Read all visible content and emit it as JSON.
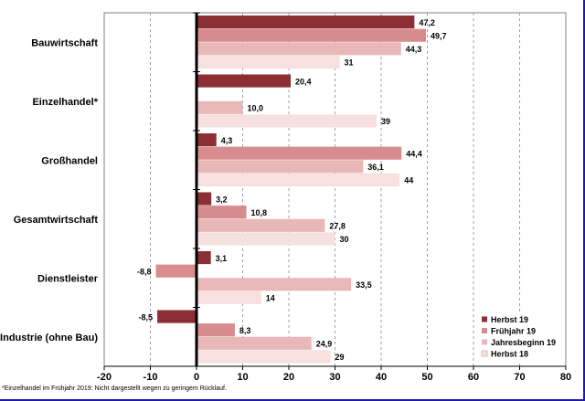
{
  "chart_data": {
    "type": "bar",
    "orientation": "horizontal",
    "categories": [
      "Bauwirtschaft",
      "Einzelhandel*",
      "Großhandel",
      "Gesamtwirtschaft",
      "Dienstleister",
      "Industrie (ohne Bau)"
    ],
    "series": [
      {
        "name": "Herbst 19",
        "color": "#8b2f35",
        "values": [
          47.2,
          20.4,
          4.3,
          3.2,
          3.1,
          -8.5
        ],
        "labels": [
          "47,2",
          "20,4",
          "4,3",
          "3,2",
          "3,1",
          "-8,5"
        ]
      },
      {
        "name": "Frühjahr 19",
        "color": "#d88c8e",
        "values": [
          49.7,
          null,
          44.4,
          10.8,
          -8.8,
          8.3
        ],
        "labels": [
          "49,7",
          "",
          "44,4",
          "10,8",
          "-8,8",
          "8,3"
        ]
      },
      {
        "name": "Jahresbeginn 19",
        "color": "#e8b8b8",
        "values": [
          44.3,
          10.0,
          36.1,
          27.8,
          33.5,
          24.9
        ],
        "labels": [
          "44,3",
          "10,0",
          "36,1",
          "27,8",
          "33,5",
          "24,9"
        ]
      },
      {
        "name": "Herbst 18",
        "color": "#f6e0e0",
        "values": [
          31,
          39,
          44,
          30,
          14,
          29
        ],
        "labels": [
          "31",
          "39",
          "44",
          "30",
          "14",
          "29"
        ]
      }
    ],
    "xlim": [
      -20,
      80
    ],
    "xticks": [
      -20,
      -10,
      0,
      10,
      20,
      30,
      40,
      50,
      60,
      70,
      80
    ],
    "grid": "vertical dashed",
    "legend_position": "bottom-right",
    "footnote": "*Einzelhandel im Frühjahr 2019: Nicht dargestellt wegen zu geringem Rücklauf."
  }
}
